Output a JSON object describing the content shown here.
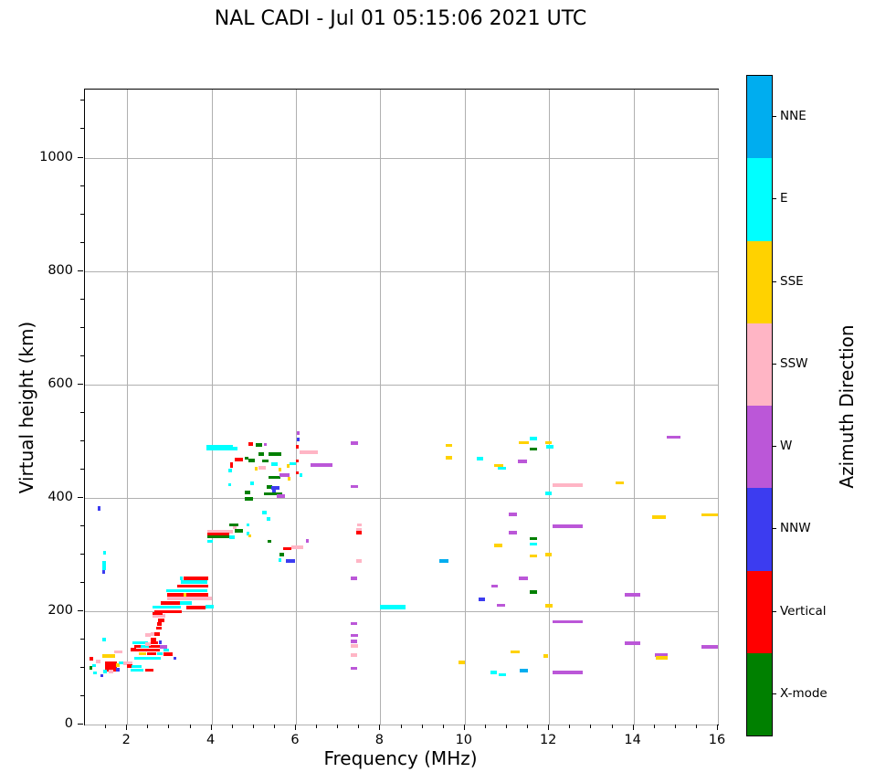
{
  "title": "NAL CADI - Jul 01 05:15:06 2021 UTC",
  "chart_data": {
    "type": "scatter",
    "title": "NAL CADI - Jul 01 05:15:06 2021 UTC",
    "xlabel": "Frequency (MHz)",
    "ylabel": "Virtual height (km)",
    "xlim": [
      1,
      16
    ],
    "ylim": [
      0,
      1120
    ],
    "xticks": [
      2,
      4,
      6,
      8,
      10,
      12,
      14,
      16
    ],
    "yticks": [
      0,
      200,
      400,
      600,
      800,
      1000
    ],
    "x_minor_step": 0.5,
    "y_minor_step": 50,
    "grid": true,
    "grid_color": "#b0b0b0",
    "marker_style": "horizontal-dash",
    "colorbar": {
      "label": "Azimuth Direction",
      "categories": [
        {
          "key": "NNE",
          "label": "NNE",
          "color": "#00ADEF"
        },
        {
          "key": "E",
          "label": "E",
          "color": "#00FFFF"
        },
        {
          "key": "SSE",
          "label": "SSE",
          "color": "#FFD200"
        },
        {
          "key": "SSW",
          "label": "SSW",
          "color": "#FFB5C5"
        },
        {
          "key": "W",
          "label": "W",
          "color": "#BB57D8"
        },
        {
          "key": "NNW",
          "label": "NNW",
          "color": "#3C3CF0"
        },
        {
          "key": "V",
          "label": "Vertical",
          "color": "#FF0000"
        },
        {
          "key": "X",
          "label": "X-mode",
          "color": "#008000"
        }
      ]
    },
    "points_format": [
      "category",
      "freq_MHz",
      "height_km",
      "width_MHz",
      "optional_thickness_km"
    ],
    "points": [
      [
        "SSW",
        2.55,
        160,
        0.1
      ],
      [
        "E",
        1.41,
        150,
        0.08
      ],
      [
        "V",
        2.08,
        132,
        0.14
      ],
      [
        "E",
        2.12,
        144,
        0.38
      ],
      [
        "V",
        2.55,
        144,
        0.18
      ],
      [
        "NNW",
        2.76,
        145,
        0.06
      ],
      [
        "V",
        2.17,
        138,
        0.14
      ],
      [
        "E",
        2.32,
        138,
        0.2
      ],
      [
        "V",
        2.52,
        138,
        0.25
      ],
      [
        "W",
        2.78,
        137,
        0.16
      ],
      [
        "V",
        2.18,
        131,
        0.6
      ],
      [
        "E",
        2.86,
        131,
        0.13
      ],
      [
        "SSE",
        2.28,
        125,
        0.18
      ],
      [
        "V",
        2.48,
        125,
        0.2
      ],
      [
        "E",
        2.7,
        125,
        0.13
      ],
      [
        "V",
        2.85,
        124,
        0.22
      ],
      [
        "E",
        2.17,
        117,
        0.62
      ],
      [
        "NNW",
        3.1,
        117,
        0.07
      ],
      [
        "SSE",
        1.42,
        121,
        0.3
      ],
      [
        "SSW",
        1.7,
        128,
        0.2
      ],
      [
        "V",
        1.1,
        116,
        0.1
      ],
      [
        "SSW",
        1.26,
        111,
        0.1
      ],
      [
        "E",
        1.18,
        104,
        0.08
      ],
      [
        "X",
        1.1,
        100,
        0.08
      ],
      [
        "V",
        1.48,
        103,
        0.28,
        18
      ],
      [
        "SSE",
        1.74,
        105,
        0.09
      ],
      [
        "NNW",
        1.74,
        97,
        0.09
      ],
      [
        "E",
        1.8,
        109,
        0.11
      ],
      [
        "SSW",
        1.9,
        108,
        0.22
      ],
      [
        "V",
        2.0,
        103,
        0.13
      ],
      [
        "E",
        2.1,
        102,
        0.24
      ],
      [
        "E",
        2.08,
        96,
        0.3
      ],
      [
        "V",
        2.42,
        96,
        0.2
      ],
      [
        "E",
        1.2,
        91,
        0.08
      ],
      [
        "NNW",
        1.36,
        86,
        0.08
      ],
      [
        "E",
        1.44,
        93,
        0.08
      ],
      [
        "SSW",
        1.56,
        93,
        0.11
      ],
      [
        "SSW",
        2.43,
        142,
        0.12
      ],
      [
        "V",
        2.56,
        150,
        0.12
      ],
      [
        "SSW",
        2.42,
        158,
        0.14
      ],
      [
        "V",
        2.64,
        160,
        0.13
      ],
      [
        "V",
        2.68,
        170,
        0.13
      ],
      [
        "V",
        2.7,
        177,
        0.12
      ],
      [
        "V",
        2.72,
        184,
        0.16
      ],
      [
        "SSW",
        2.6,
        192,
        0.3
      ],
      [
        "V",
        2.6,
        196,
        0.24
      ],
      [
        "V",
        2.65,
        199,
        0.65
      ],
      [
        "E",
        2.6,
        207,
        0.68
      ],
      [
        "V",
        3.4,
        206,
        0.45
      ],
      [
        "E",
        3.85,
        208,
        0.2
      ],
      [
        "V",
        2.8,
        214,
        0.45
      ],
      [
        "E",
        3.25,
        214,
        0.27
      ],
      [
        "SSW",
        2.95,
        222,
        1.07
      ],
      [
        "V",
        2.95,
        229,
        0.97
      ],
      [
        "SSE",
        3.33,
        229,
        0.07
      ],
      [
        "E",
        2.93,
        236,
        0.97
      ],
      [
        "V",
        3.18,
        244,
        0.74
      ],
      [
        "E",
        3.28,
        251,
        0.62
      ],
      [
        "V",
        3.33,
        258,
        0.59
      ],
      [
        "E",
        3.25,
        258,
        0.06
      ],
      [
        "SSW",
        3.9,
        340,
        0.6
      ],
      [
        "V",
        3.9,
        335,
        0.52
      ],
      [
        "X",
        3.9,
        331,
        0.6
      ],
      [
        "E",
        4.42,
        330,
        0.13
      ],
      [
        "E",
        3.9,
        323,
        0.13
      ],
      [
        "X",
        4.42,
        352,
        0.22
      ],
      [
        "E",
        4.82,
        352,
        0.08
      ],
      [
        "SSW",
        4.5,
        347,
        0.1
      ],
      [
        "X",
        4.55,
        342,
        0.2
      ],
      [
        "E",
        4.82,
        337,
        0.08
      ],
      [
        "SSE",
        4.87,
        333,
        0.07
      ],
      [
        "E",
        5.2,
        374,
        0.11
      ],
      [
        "E",
        5.3,
        363,
        0.09
      ],
      [
        "X",
        4.78,
        398,
        0.2
      ],
      [
        "X",
        4.78,
        409,
        0.13
      ],
      [
        "X",
        5.25,
        407,
        0.42
      ],
      [
        "W",
        5.55,
        403,
        0.2
      ],
      [
        "X",
        5.32,
        323,
        0.1
      ],
      [
        "W",
        6.24,
        324,
        0.06
      ],
      [
        "V",
        5.7,
        310,
        0.2
      ],
      [
        "SSW",
        5.88,
        313,
        0.3
      ],
      [
        "X",
        5.62,
        300,
        0.1
      ],
      [
        "E",
        5.58,
        290,
        0.07
      ],
      [
        "NNW",
        5.76,
        288,
        0.23
      ],
      [
        "E",
        4.4,
        448,
        0.08
      ],
      [
        "E",
        4.4,
        423,
        0.07
      ],
      [
        "E",
        4.92,
        425,
        0.08
      ],
      [
        "V",
        4.43,
        458,
        0.08,
        10
      ],
      [
        "V",
        4.55,
        467,
        0.2
      ],
      [
        "X",
        4.78,
        470,
        0.1
      ],
      [
        "X",
        4.87,
        466,
        0.16
      ],
      [
        "SSW",
        5.12,
        453,
        0.16
      ],
      [
        "SSE",
        5.02,
        451,
        0.08
      ],
      [
        "SSE",
        5.58,
        450,
        0.06
      ],
      [
        "X",
        5.2,
        465,
        0.16
      ],
      [
        "X",
        5.36,
        477,
        0.3
      ],
      [
        "X",
        5.12,
        477,
        0.12
      ],
      [
        "E",
        5.42,
        459,
        0.15
      ],
      [
        "E",
        5.85,
        460,
        0.16
      ],
      [
        "SSE",
        5.78,
        456,
        0.06
      ],
      [
        "X",
        5.35,
        436,
        0.28
      ],
      [
        "W",
        5.6,
        440,
        0.25
      ],
      [
        "SSE",
        5.8,
        433,
        0.08
      ],
      [
        "E",
        6.08,
        440,
        0.08
      ],
      [
        "V",
        6.0,
        465,
        0.06
      ],
      [
        "V",
        6.0,
        444,
        0.06
      ],
      [
        "X",
        5.3,
        419,
        0.13
      ],
      [
        "NNW",
        5.42,
        417,
        0.2
      ],
      [
        "NNW",
        5.44,
        412,
        0.08
      ],
      [
        "E",
        3.88,
        488,
        0.62,
        9
      ],
      [
        "E",
        4.5,
        487,
        0.12
      ],
      [
        "V",
        4.88,
        495,
        0.11
      ],
      [
        "X",
        5.05,
        493,
        0.14
      ],
      [
        "W",
        5.25,
        494,
        0.07
      ],
      [
        "W",
        6.02,
        514,
        0.06
      ],
      [
        "NNW",
        6.02,
        503,
        0.07
      ],
      [
        "V",
        6.0,
        490,
        0.06
      ],
      [
        "SSW",
        6.08,
        480,
        0.44
      ],
      [
        "W",
        6.35,
        457,
        0.52,
        7
      ],
      [
        "W",
        7.3,
        496,
        0.18
      ],
      [
        "W",
        7.3,
        420,
        0.18
      ],
      [
        "SSW",
        7.44,
        352,
        0.12
      ],
      [
        "SSW",
        7.42,
        343,
        0.15
      ],
      [
        "V",
        7.42,
        338,
        0.13
      ],
      [
        "SSW",
        7.42,
        288,
        0.13
      ],
      [
        "W",
        7.3,
        258,
        0.16
      ],
      [
        "W",
        7.3,
        178,
        0.16
      ],
      [
        "W",
        7.3,
        157,
        0.17
      ],
      [
        "W",
        7.3,
        147,
        0.16
      ],
      [
        "SSW",
        7.3,
        139,
        0.17
      ],
      [
        "SSW",
        7.3,
        122,
        0.16
      ],
      [
        "W",
        7.3,
        99,
        0.16
      ],
      [
        "E",
        7.98,
        207,
        0.62,
        8
      ],
      [
        "NNE",
        9.4,
        288,
        0.22
      ],
      [
        "SSE",
        9.55,
        492,
        0.15
      ],
      [
        "SSE",
        9.55,
        471,
        0.16
      ],
      [
        "SSE",
        9.85,
        110,
        0.15
      ],
      [
        "E",
        10.28,
        469,
        0.16
      ],
      [
        "SSE",
        10.7,
        457,
        0.22
      ],
      [
        "E",
        10.78,
        452,
        0.2
      ],
      [
        "NNW",
        10.33,
        221,
        0.16
      ],
      [
        "W",
        10.76,
        210,
        0.2
      ],
      [
        "W",
        10.63,
        244,
        0.15
      ],
      [
        "SSE",
        10.7,
        316,
        0.2
      ],
      [
        "E",
        10.62,
        92,
        0.15
      ],
      [
        "E",
        10.8,
        88,
        0.18
      ],
      [
        "SSE",
        11.08,
        128,
        0.22
      ],
      [
        "NNE",
        11.3,
        95,
        0.2
      ],
      [
        "W",
        11.05,
        371,
        0.18
      ],
      [
        "W",
        11.05,
        338,
        0.2
      ],
      [
        "SSE",
        11.28,
        497,
        0.25
      ],
      [
        "E",
        11.55,
        504,
        0.17
      ],
      [
        "X",
        11.55,
        486,
        0.17
      ],
      [
        "W",
        11.25,
        464,
        0.22
      ],
      [
        "SSE",
        11.9,
        497,
        0.17
      ],
      [
        "E",
        11.93,
        490,
        0.17
      ],
      [
        "E",
        11.9,
        408,
        0.17
      ],
      [
        "X",
        11.55,
        328,
        0.17
      ],
      [
        "E",
        11.55,
        318,
        0.16
      ],
      [
        "SSE",
        11.55,
        297,
        0.16
      ],
      [
        "SSE",
        11.9,
        300,
        0.17
      ],
      [
        "W",
        11.28,
        258,
        0.22
      ],
      [
        "X",
        11.55,
        234,
        0.17
      ],
      [
        "SSE",
        11.9,
        209,
        0.18
      ],
      [
        "SSE",
        11.87,
        121,
        0.11
      ],
      [
        "SSW",
        12.08,
        422,
        0.72
      ],
      [
        "W",
        12.08,
        350,
        0.72
      ],
      [
        "W",
        12.08,
        181,
        0.72
      ],
      [
        "W",
        12.08,
        92,
        0.72
      ],
      [
        "SSE",
        13.58,
        426,
        0.2
      ],
      [
        "W",
        13.8,
        229,
        0.36
      ],
      [
        "W",
        13.8,
        143,
        0.36
      ],
      [
        "SSE",
        14.45,
        366,
        0.32
      ],
      [
        "W",
        14.5,
        122,
        0.32
      ],
      [
        "SSE",
        14.52,
        118,
        0.3
      ],
      [
        "W",
        14.78,
        507,
        0.34
      ],
      [
        "SSE",
        15.6,
        370,
        0.4
      ],
      [
        "W",
        15.6,
        137,
        0.4
      ],
      [
        "NNW",
        1.3,
        381,
        0.06,
        9
      ],
      [
        "E",
        1.43,
        303,
        0.07
      ],
      [
        "E",
        1.42,
        281,
        0.07,
        16
      ],
      [
        "NNW",
        1.41,
        269,
        0.06
      ]
    ]
  }
}
